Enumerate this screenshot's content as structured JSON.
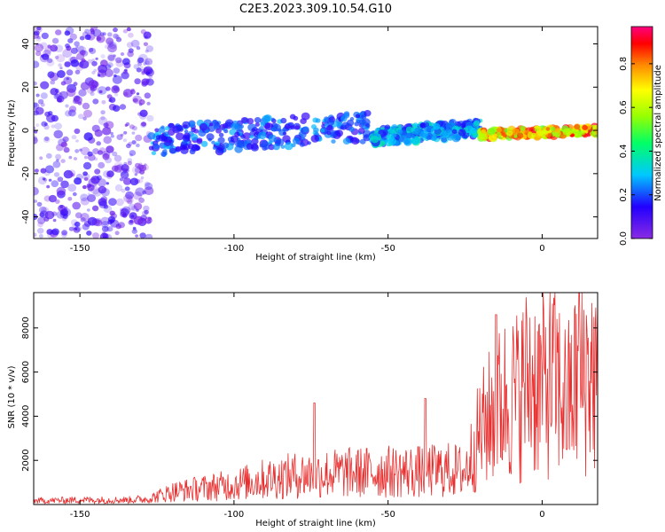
{
  "title": "C2E3.2023.309.10.54.G10",
  "colors": {
    "snr_line": "#e83030",
    "axis": "#000000"
  },
  "chart_data": [
    {
      "type": "heatmap",
      "xlabel": "Height of straight line (km)",
      "ylabel": "Frequency (Hz)",
      "xlim": [
        -165,
        18
      ],
      "ylim": [
        -50,
        48
      ],
      "xticks": [
        -150,
        -100,
        -50,
        0
      ],
      "yticks": [
        -40,
        -20,
        0,
        20,
        40
      ],
      "grid": false,
      "colormap": "rainbow (purple → blue → cyan → green → yellow → red → magenta)",
      "colorbar": {
        "label": "Normalized spectral amplitude",
        "range": [
          0,
          0.97
        ],
        "ticks": [
          0.0,
          0.2,
          0.4,
          0.6,
          0.8
        ],
        "tick_labels": [
          "0.0",
          "0.2",
          "0.4",
          "0.6",
          "0.8"
        ]
      },
      "features": [
        {
          "x_range": [
            -165,
            -127
          ],
          "y_range": [
            -50,
            48
          ],
          "amplitude_range": [
            0.02,
            0.15
          ]
        },
        {
          "x_range": [
            -127,
            -55
          ],
          "center_y": [
            -5,
            2
          ],
          "amplitude_range": [
            0.1,
            0.3
          ]
        },
        {
          "x_range": [
            -55,
            -20
          ],
          "center_y": [
            -3,
            1
          ],
          "amplitude_range": [
            0.15,
            0.4
          ]
        },
        {
          "x_range": [
            -20,
            18
          ],
          "center_y": [
            -2,
            0
          ],
          "amplitude_range": [
            0.5,
            0.97
          ]
        }
      ]
    },
    {
      "type": "line",
      "xlabel": "Height of straight line (km)",
      "ylabel": "SNR (10 * v/v)",
      "xlim": [
        -165,
        18
      ],
      "ylim": [
        0,
        9600
      ],
      "xticks": [
        -150,
        -100,
        -50,
        0
      ],
      "yticks": [
        2000,
        4000,
        6000,
        8000
      ],
      "grid": false,
      "series": [
        {
          "x": [
            -165,
            -150,
            -135,
            -128,
            -120,
            -110,
            -100,
            -90,
            -80,
            -70,
            -60,
            -50,
            -40,
            -30,
            -25,
            -20,
            -16,
            -12,
            -8,
            -4,
            0,
            4,
            8,
            12,
            16,
            18
          ],
          "y": [
            200,
            250,
            250,
            300,
            700,
            900,
            1100,
            1400,
            1600,
            1700,
            1750,
            1800,
            1800,
            1900,
            1800,
            4000,
            5000,
            5800,
            6000,
            7000,
            6500,
            7000,
            5500,
            7000,
            7500,
            6500
          ],
          "peaks": [
            {
              "x": -74,
              "y": 4600
            },
            {
              "x": -38,
              "y": 4800
            },
            {
              "x": -15,
              "y": 8600
            },
            {
              "x": 12,
              "y": 9600
            }
          ]
        }
      ]
    }
  ]
}
